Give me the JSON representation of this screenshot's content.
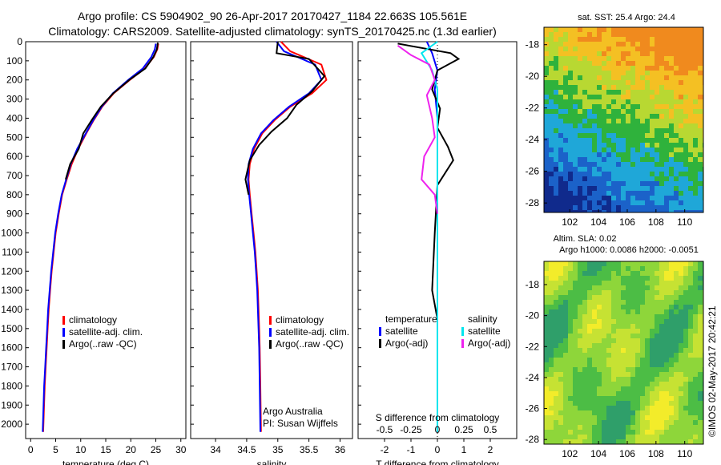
{
  "title_line1": "Argo profile: CS 5904902_90 26-Apr-2017 20170427_1184 22.663S 105.561E",
  "title_line2": "Climatology: CARS2009. Satellite-adjusted climatology: synTS_20170425.nc (1.3d earlier)",
  "side_text": "©IMOS 02-May-2017 20:42:21",
  "colors": {
    "climatology": "#ff0000",
    "satellite": "#0000ff",
    "argo": "#000000",
    "sal_satellite": "#00e5ee",
    "sal_argo": "#ee22ee"
  },
  "chart_data": [
    {
      "type": "line",
      "xlabel": "temperature (deg C)",
      "ylim": [
        2075,
        0
      ],
      "xlim": [
        -1,
        31
      ],
      "xticks": [
        "0",
        "5",
        "10",
        "15",
        "20",
        "25",
        "30"
      ],
      "xtick_values": [
        0,
        5,
        10,
        15,
        20,
        25,
        30
      ],
      "yticks": [
        "0",
        "100",
        "200",
        "300",
        "400",
        "500",
        "600",
        "700",
        "800",
        "900",
        "1000",
        "1100",
        "1200",
        "1300",
        "1400",
        "1500",
        "1600",
        "1700",
        "1800",
        "1900",
        "2000"
      ],
      "legend": [
        "climatology",
        "satellite-adj. clim.",
        "Argo(..raw -QC)"
      ],
      "series": [
        {
          "name": "climatology",
          "x": [
            25.5,
            25.3,
            24.6,
            22.8,
            19.8,
            16.6,
            14.3,
            12.6,
            11.1,
            9.5,
            8.2,
            7.2,
            6.3,
            5.6,
            5.0,
            4.6,
            4.2,
            3.9,
            3.6,
            3.4,
            3.2,
            3.0,
            2.8,
            2.5
          ],
          "y": [
            10,
            40,
            80,
            140,
            200,
            270,
            340,
            410,
            480,
            560,
            640,
            720,
            800,
            900,
            1000,
            1100,
            1200,
            1300,
            1400,
            1500,
            1600,
            1700,
            1800,
            2040
          ]
        },
        {
          "name": "satellite-adj. clim.",
          "x": [
            25.0,
            24.8,
            24.1,
            22.4,
            19.5,
            16.4,
            14.2,
            12.5,
            11.0,
            9.3,
            8.0,
            7.1,
            6.2,
            5.5,
            4.9,
            4.5,
            4.1,
            3.8,
            3.5,
            3.3,
            3.1,
            2.9,
            2.7,
            2.4
          ],
          "y": [
            10,
            40,
            80,
            140,
            200,
            270,
            340,
            410,
            480,
            560,
            640,
            720,
            800,
            900,
            1000,
            1100,
            1200,
            1300,
            1400,
            1500,
            1600,
            1700,
            1800,
            2040
          ]
        },
        {
          "name": "Argo(..raw -QC)",
          "x": [
            25.4,
            25.2,
            24.5,
            22.9,
            19.7,
            16.5,
            14.0,
            12.2,
            10.5,
            9.6,
            7.9,
            7.0
          ],
          "y": [
            5,
            40,
            80,
            140,
            200,
            270,
            340,
            410,
            480,
            560,
            640,
            720
          ]
        }
      ]
    },
    {
      "type": "line",
      "xlabel": "salinity",
      "ylim": [
        2075,
        0
      ],
      "xlim": [
        33.6,
        36.2
      ],
      "xticks": [
        "34",
        "34.5",
        "35",
        "35.5",
        "36"
      ],
      "xtick_values": [
        34,
        34.5,
        35,
        35.5,
        36
      ],
      "legend": [
        "climatology",
        "satellite-adj. clim.",
        "Argo(..raw -QC)"
      ],
      "annotation": [
        "Argo Australia",
        "PI: Susan Wijffels"
      ],
      "series": [
        {
          "name": "climatology",
          "x": [
            35.05,
            35.2,
            35.7,
            35.78,
            35.55,
            35.2,
            34.95,
            34.75,
            34.62,
            34.55,
            34.53,
            34.55,
            34.58,
            34.61,
            34.64,
            34.66,
            34.68,
            34.69,
            34.7,
            34.71,
            34.72,
            34.73
          ],
          "y": [
            0,
            50,
            120,
            200,
            270,
            340,
            410,
            480,
            560,
            640,
            720,
            800,
            900,
            1000,
            1100,
            1200,
            1300,
            1400,
            1500,
            1600,
            1800,
            2040
          ]
        },
        {
          "name": "satellite-adj. clim.",
          "x": [
            34.98,
            35.1,
            35.6,
            35.7,
            35.5,
            35.18,
            34.93,
            34.73,
            34.6,
            34.53,
            34.52,
            34.54,
            34.57,
            34.6,
            34.63,
            34.65,
            34.67,
            34.68,
            34.69,
            34.7,
            34.71,
            34.72
          ],
          "y": [
            0,
            50,
            120,
            200,
            270,
            340,
            410,
            480,
            560,
            640,
            720,
            800,
            900,
            1000,
            1100,
            1200,
            1300,
            1400,
            1500,
            1600,
            1800,
            2040
          ]
        },
        {
          "name": "Argo(..raw -QC)",
          "x": [
            35.0,
            34.98,
            35.5,
            35.75,
            35.55,
            35.3,
            35.15,
            34.9,
            34.7,
            34.55,
            34.48,
            34.53
          ],
          "y": [
            0,
            60,
            90,
            180,
            260,
            330,
            400,
            470,
            540,
            620,
            720,
            800
          ]
        }
      ]
    },
    {
      "type": "line",
      "xlabel": "T difference from climatology",
      "xlabel2": "S difference from climatology",
      "ylim": [
        2075,
        0
      ],
      "xlim": [
        -3,
        3
      ],
      "xticks": [
        "-2",
        "-1",
        "0",
        "1",
        "2"
      ],
      "xtick_values": [
        -2,
        -1,
        0,
        1,
        2
      ],
      "sticks": [
        "-0.5",
        "-0.25",
        "0",
        "0.25",
        "0.5"
      ],
      "stick_values": [
        -2,
        -1,
        0,
        1,
        2
      ],
      "legend_headers": [
        "temperature",
        "salinity"
      ],
      "legend": [
        "satellite",
        "Argo(-adj)",
        "satellite",
        "Argo(-adj)"
      ],
      "series": [
        {
          "name": "satellite",
          "x": [
            -0.4,
            -0.2,
            0.0,
            -0.1,
            0.0,
            0.0,
            0.0,
            0.0
          ],
          "y": [
            0,
            60,
            150,
            250,
            400,
            700,
            1200,
            2040
          ]
        },
        {
          "name": "Argo(-adj)",
          "x": [
            -1.5,
            0.5,
            0.8,
            0.0,
            -0.2,
            0.1,
            0.0,
            0.4,
            0.6,
            0.0,
            -0.1,
            -0.2,
            0.0
          ],
          "y": [
            10,
            60,
            90,
            150,
            250,
            350,
            450,
            550,
            620,
            750,
            1000,
            1300,
            1450
          ]
        },
        {
          "name": "satellite",
          "x": [
            0.0,
            -0.6,
            -0.2,
            0.0,
            0.0,
            0.0,
            0.0,
            0.0
          ],
          "y": [
            0,
            60,
            150,
            250,
            400,
            700,
            1200,
            2040
          ]
        },
        {
          "name": "Argo(-adj)",
          "x": [
            -1.5,
            -1.0,
            -0.3,
            -0.1,
            -0.4,
            -0.2,
            -0.1,
            -0.5,
            -0.6,
            -0.1,
            0.0
          ],
          "y": [
            20,
            70,
            120,
            200,
            280,
            400,
            500,
            600,
            720,
            800,
            900
          ]
        }
      ]
    },
    {
      "type": "heatmap",
      "title": "sat. SST: 25.4 Argo: 24.4",
      "xticks": [
        "102",
        "104",
        "106",
        "108",
        "110"
      ],
      "xtick_values": [
        102,
        104,
        106,
        108,
        110
      ],
      "yticks": [
        "-18",
        "-20",
        "-22",
        "-24",
        "-26",
        "-28"
      ],
      "ytick_values": [
        -18,
        -20,
        -22,
        -24,
        -26,
        -28
      ],
      "xlim": [
        100.2,
        111.3
      ],
      "ylim": [
        -28.6,
        -16.9
      ]
    },
    {
      "type": "heatmap",
      "title": "Altim. SLA: 0.02",
      "subtitle": "Argo h1000: 0.0086 h2000: -0.0051",
      "xticks": [
        "102",
        "104",
        "106",
        "108",
        "110"
      ],
      "xtick_values": [
        102,
        104,
        106,
        108,
        110
      ],
      "yticks": [
        "-18",
        "-20",
        "-22",
        "-24",
        "-26",
        "-28"
      ],
      "ytick_values": [
        -18,
        -20,
        -22,
        -24,
        -26,
        -28
      ],
      "xlim": [
        100.2,
        111.3
      ],
      "ylim": [
        -28.3,
        -16.5
      ]
    }
  ]
}
